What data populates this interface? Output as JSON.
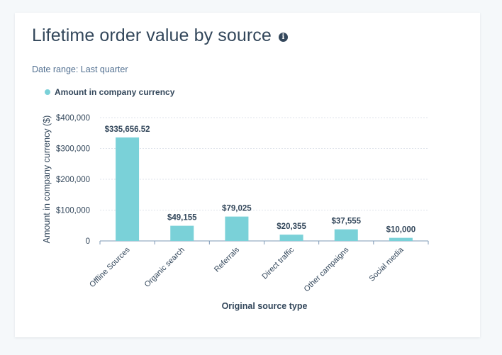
{
  "header": {
    "title": "Lifetime order value by source",
    "info_icon": "info-icon",
    "date_range": "Date range: Last quarter"
  },
  "colors": {
    "bar": "#7ad1d8",
    "text": "#33475b",
    "grid": "#dfe3eb"
  },
  "chart_data": {
    "type": "bar",
    "title": "Lifetime order value by source",
    "xlabel": "Original source type",
    "ylabel": "Amount in company currency ($)",
    "ylim": [
      0,
      400000
    ],
    "yticks": [
      {
        "value": 0,
        "label": "0"
      },
      {
        "value": 100000,
        "label": "$100,000"
      },
      {
        "value": 200000,
        "label": "$200,000"
      },
      {
        "value": 300000,
        "label": "$300,000"
      },
      {
        "value": 400000,
        "label": "$400,000"
      }
    ],
    "categories": [
      "Offline Sources",
      "Organic search",
      "Referrals",
      "Direct traffic",
      "Other campaigns",
      "Social media"
    ],
    "series": [
      {
        "name": "Amount in company currency",
        "color": "#7ad1d8",
        "values": [
          335656.52,
          49155,
          79025,
          20355,
          37555,
          10000
        ],
        "labels": [
          "$335,656.52",
          "$49,155",
          "$79,025",
          "$20,355",
          "$37,555",
          "$10,000"
        ]
      }
    ],
    "legend": "top-left",
    "grid": true
  }
}
